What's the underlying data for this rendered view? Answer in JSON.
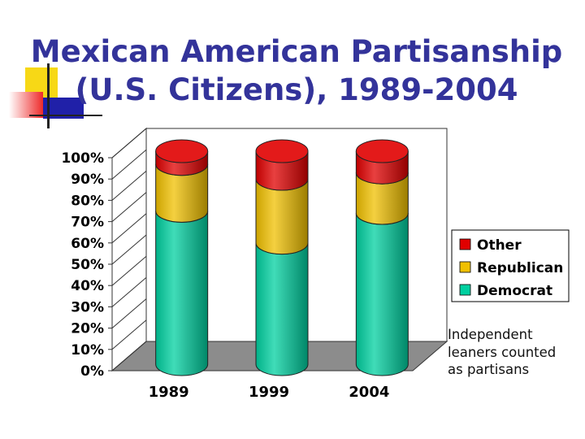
{
  "colors": {
    "title": "#33339a",
    "other": "#e00000",
    "republican": "#f0c000",
    "democrat": "#00d0a0",
    "floor": "#8c8c8c",
    "deco_yellow": "#f7d816",
    "deco_red": "#ee2a2a",
    "deco_blue": "#2020a8"
  },
  "title_lines": [
    "Mexican American Partisanship",
    "(U.S. Citizens), 1989-2004"
  ],
  "note_lines": [
    "Independent",
    "leaners counted",
    "as partisans"
  ],
  "chart_data": {
    "type": "bar",
    "stacked": true,
    "three_d": true,
    "title": "",
    "xlabel": "",
    "ylabel": "",
    "categories": [
      "1989",
      "1999",
      "2004"
    ],
    "series": [
      {
        "name": "Democrat",
        "color": "#00d0a0",
        "values": [
          72,
          57,
          71
        ]
      },
      {
        "name": "Republican",
        "color": "#f0c000",
        "values": [
          22,
          30,
          19
        ]
      },
      {
        "name": "Other",
        "color": "#e00000",
        "values": [
          6,
          13,
          10
        ]
      }
    ],
    "ylim": [
      0,
      100
    ],
    "y_ticks": [
      "0%",
      "10%",
      "20%",
      "30%",
      "40%",
      "50%",
      "60%",
      "70%",
      "80%",
      "90%",
      "100%"
    ],
    "y_tick_values": [
      0,
      10,
      20,
      30,
      40,
      50,
      60,
      70,
      80,
      90,
      100
    ],
    "legend": {
      "position": "right",
      "entries": [
        "Other",
        "Republican",
        "Democrat"
      ]
    },
    "grid": false
  }
}
